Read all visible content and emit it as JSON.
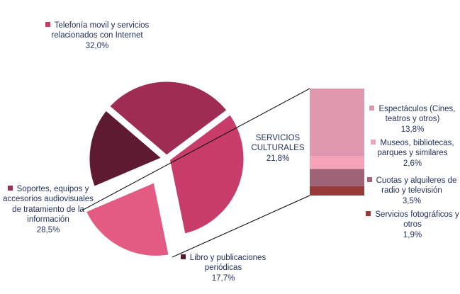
{
  "chart_data": {
    "type": "pie",
    "slices": [
      {
        "label": "Telefonía movil y servicios relacionados con Internet",
        "value": 32.0,
        "value_text": "32,0%",
        "color": "#c83c6a"
      },
      {
        "label": "Servicios culturales",
        "display": "SERVICIOS\nCULTURALES",
        "value": 21.8,
        "value_text": "21,8%",
        "color": "#e35a82",
        "exploded": true
      },
      {
        "label": "Libro y publicaciones periódicas",
        "value": 17.7,
        "value_text": "17,7%",
        "color": "#5e1a30"
      },
      {
        "label": "Soportes, equipos y accesorios audiovisuales de tratamiento de la información",
        "value": 28.5,
        "value_text": "28,5%",
        "color": "#9e2c53"
      }
    ],
    "breakdown": {
      "of": "Servicios culturales",
      "type": "stacked-bar",
      "items": [
        {
          "label": "Espectáculos (Cines, teatros y otros)",
          "value": 13.8,
          "value_text": "13,8%",
          "color": "#e097ae"
        },
        {
          "label": "Museos, bibliotecas, parques y similares",
          "value": 2.6,
          "value_text": "2,6%",
          "color": "#f6a2b8"
        },
        {
          "label": "Cuotas y alquileres de radio y televisión",
          "value": 3.5,
          "value_text": "3,5%",
          "color": "#9e6376"
        },
        {
          "label": "Servicios fotográficos y otros",
          "value": 1.9,
          "value_text": "1,9%",
          "color": "#993a3a"
        }
      ]
    }
  }
}
